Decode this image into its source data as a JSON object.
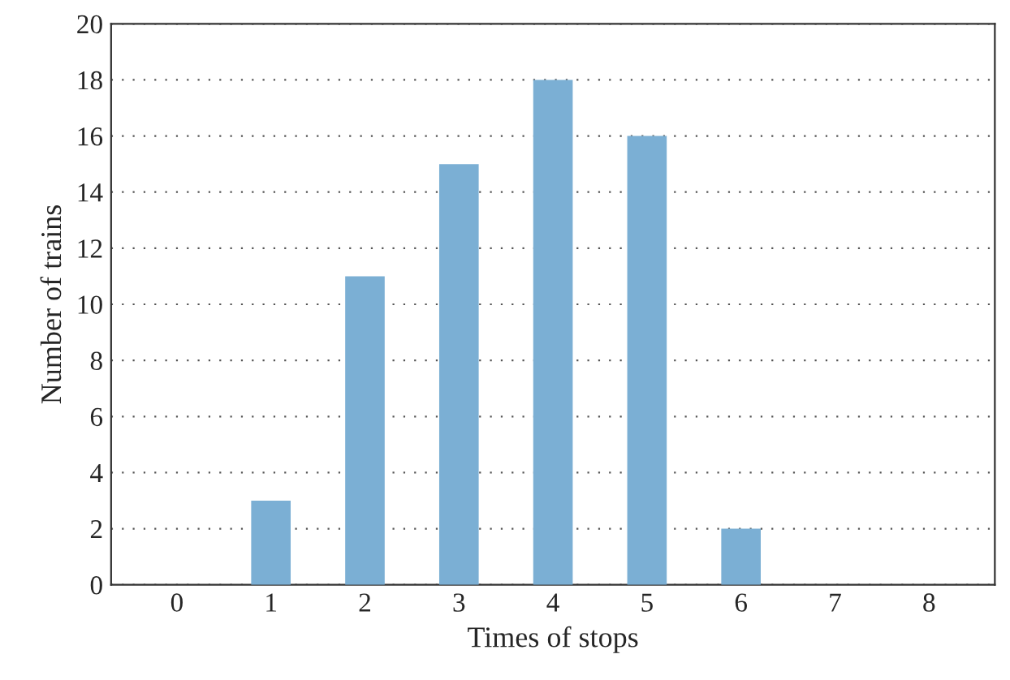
{
  "chart_data": {
    "type": "bar",
    "xlabel": "Times of stops",
    "ylabel": "Number of trains",
    "categories": [
      "0",
      "1",
      "2",
      "3",
      "4",
      "5",
      "6",
      "7",
      "8"
    ],
    "values": [
      0,
      3,
      11,
      15,
      18,
      16,
      2,
      0,
      0
    ],
    "color": "#7bafd4",
    "ylim": [
      0,
      20
    ],
    "yticks": [
      0,
      2,
      4,
      6,
      8,
      10,
      12,
      14,
      16,
      18,
      20
    ],
    "grid": "y",
    "legend": false
  }
}
